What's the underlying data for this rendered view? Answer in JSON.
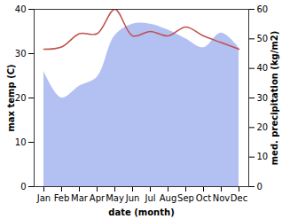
{
  "chart_data": {
    "type": "line",
    "xlabel": "date (month)",
    "ylabel": "max temp (C)",
    "y2label": "med. precipitation (kg/m2)",
    "categories": [
      "Jan",
      "Feb",
      "Mar",
      "Apr",
      "May",
      "Jun",
      "Jul",
      "Aug",
      "Sep",
      "Oct",
      "Nov",
      "Dec"
    ],
    "series": [
      {
        "name": "med. precipitation (kg/m2)",
        "type": "area",
        "axis": "y2",
        "color": "#b3c0f2",
        "values": [
          39,
          30,
          34,
          37,
          51,
          55,
          55,
          53,
          50,
          47,
          52,
          47
        ]
      },
      {
        "name": "max temp (C)",
        "type": "line",
        "axis": "y",
        "color": "#c0504d",
        "values": [
          31,
          31.5,
          34.5,
          34.5,
          40,
          34,
          35,
          34,
          36,
          34,
          32.5,
          31
        ]
      }
    ],
    "ylim": [
      0,
      40
    ],
    "yticks": [
      0,
      10,
      20,
      30,
      40
    ],
    "y2lim": [
      0,
      60
    ],
    "y2ticks": [
      0,
      10,
      20,
      30,
      40,
      50,
      60
    ],
    "grid": false
  }
}
